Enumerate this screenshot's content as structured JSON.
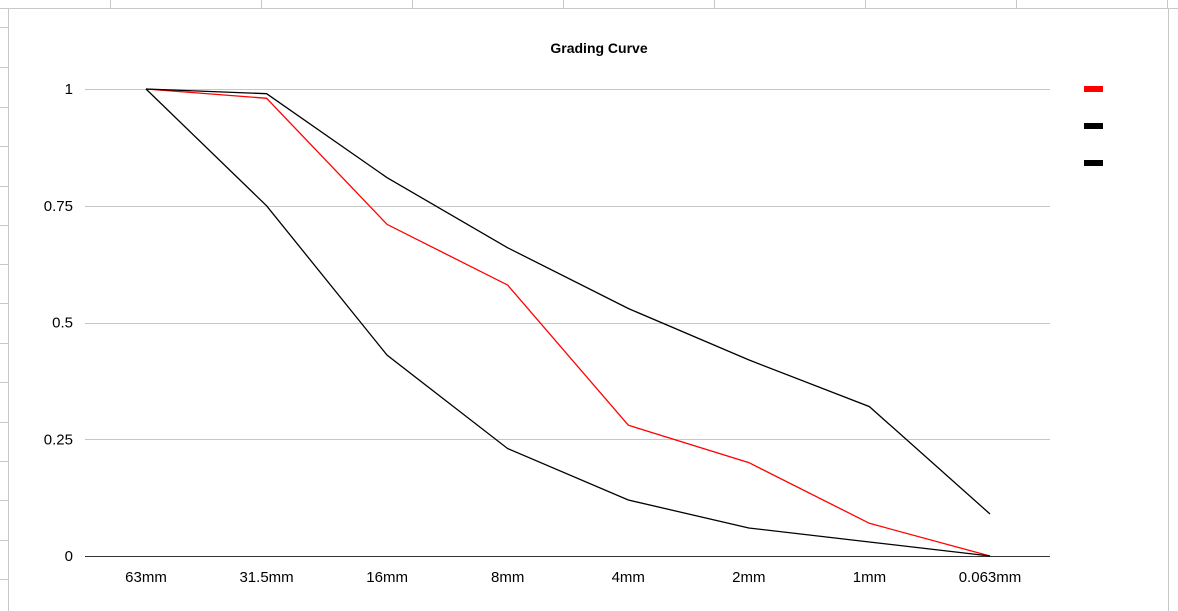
{
  "chart_data": {
    "type": "line",
    "title": "Grading Curve",
    "xlabel": "",
    "ylabel": "",
    "categories": [
      "63mm",
      "31.5mm",
      "16mm",
      "8mm",
      "4mm",
      "2mm",
      "1mm",
      "0.063mm"
    ],
    "yticks": [
      "0",
      "0.25",
      "0.5",
      "0.75",
      "1"
    ],
    "ylim": [
      0,
      1
    ],
    "grid": true,
    "legend": "right",
    "series": [
      {
        "color": "#ff0000",
        "values": [
          1.0,
          0.98,
          0.71,
          0.58,
          0.28,
          0.2,
          0.07,
          0.0
        ]
      },
      {
        "color": "#000000",
        "values": [
          1.0,
          0.99,
          0.81,
          0.66,
          0.53,
          0.42,
          0.32,
          0.09
        ]
      },
      {
        "color": "#000000",
        "values": [
          1.0,
          0.75,
          0.43,
          0.23,
          0.12,
          0.06,
          0.03,
          0.0
        ]
      }
    ]
  }
}
